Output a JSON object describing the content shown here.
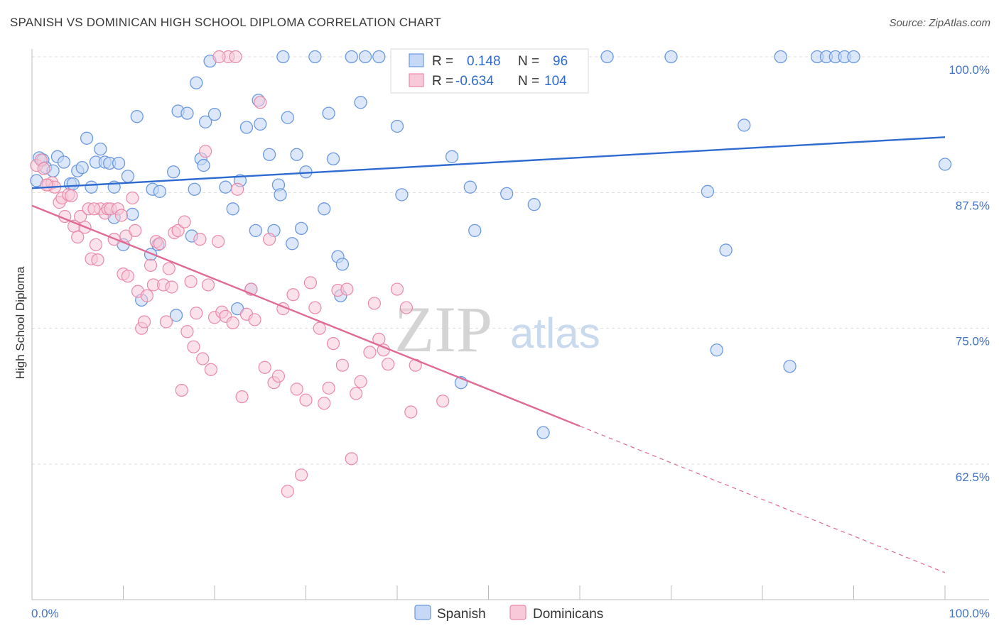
{
  "header": {
    "title": "SPANISH VS DOMINICAN HIGH SCHOOL DIPLOMA CORRELATION CHART",
    "source": "Source: ZipAtlas.com"
  },
  "watermark": {
    "zip": "ZIP",
    "atlas": "atlas"
  },
  "legend": {
    "spanish": {
      "r_label": "R =",
      "r_value": "0.148",
      "n_label": "N =",
      "n_value": "96"
    },
    "dominicans": {
      "r_label": "R =",
      "r_value": "-0.634",
      "n_label": "N =",
      "n_value": "104"
    }
  },
  "chart_data": {
    "type": "scatter",
    "title": "SPANISH VS DOMINICAN HIGH SCHOOL DIPLOMA CORRELATION CHART",
    "ylabel": "High School Diploma",
    "xlabel": "",
    "xlim": [
      0,
      100
    ],
    "ylim": [
      53,
      101.5
    ],
    "x_tick_labels": [
      "0.0%",
      "100.0%"
    ],
    "y_ticks": [
      100.0,
      87.5,
      75.0,
      62.5
    ],
    "y_tick_labels": [
      "100.0%",
      "87.5%",
      "75.0%",
      "62.5%"
    ],
    "grid": true,
    "legend_position": "top-center",
    "colors": {
      "spanish": "#6c9ae0",
      "spanish_fill": "#c5d8f5",
      "dominicans": "#e98aa8",
      "dominicans_fill": "#f8c9d8",
      "spanish_line": "#2e6bd0",
      "dominicans_line": "#e06a93"
    },
    "series": [
      {
        "name": "Spanish",
        "trend": {
          "x": [
            0,
            100
          ],
          "y": [
            87.9,
            92.6
          ]
        },
        "points": [
          [
            0.5,
            88.6
          ],
          [
            0.8,
            90.7
          ],
          [
            1.2,
            90.5
          ],
          [
            1.5,
            89.8
          ],
          [
            2.3,
            89.5
          ],
          [
            2.8,
            90.8
          ],
          [
            3.5,
            90.3
          ],
          [
            4.2,
            88.3
          ],
          [
            4.5,
            88.3
          ],
          [
            5,
            89.5
          ],
          [
            5.5,
            89.8
          ],
          [
            6,
            92.5
          ],
          [
            6.5,
            88.0
          ],
          [
            7,
            90.3
          ],
          [
            7.5,
            91.5
          ],
          [
            8,
            90.3
          ],
          [
            8.5,
            90.2
          ],
          [
            9,
            88.0
          ],
          [
            9.5,
            90.2
          ],
          [
            9,
            85.2
          ],
          [
            10,
            82.7
          ],
          [
            10.5,
            89.0
          ],
          [
            11,
            85.5
          ],
          [
            11.5,
            94.5
          ],
          [
            12,
            77.6
          ],
          [
            13,
            81.8
          ],
          [
            13.2,
            87.8
          ],
          [
            13.8,
            82.7
          ],
          [
            14,
            87.6
          ],
          [
            15.5,
            89.4
          ],
          [
            15.8,
            76.2
          ],
          [
            16,
            95.0
          ],
          [
            17,
            94.8
          ],
          [
            17.5,
            83.5
          ],
          [
            17.8,
            87.8
          ],
          [
            18,
            97.6
          ],
          [
            18.5,
            90.6
          ],
          [
            18.8,
            90.0
          ],
          [
            19,
            94.0
          ],
          [
            19.5,
            99.6
          ],
          [
            20,
            94.7
          ],
          [
            21.2,
            88.0
          ],
          [
            22,
            86.0
          ],
          [
            22.5,
            76.8
          ],
          [
            22.8,
            88.6
          ],
          [
            23.5,
            93.5
          ],
          [
            24,
            78.6
          ],
          [
            24.5,
            84.0
          ],
          [
            24.8,
            96.0
          ],
          [
            25,
            93.8
          ],
          [
            26,
            91.0
          ],
          [
            26.5,
            84.0
          ],
          [
            27,
            88.2
          ],
          [
            27.2,
            87.3
          ],
          [
            27.5,
            100
          ],
          [
            28,
            94.4
          ],
          [
            28.5,
            82.8
          ],
          [
            29,
            91.0
          ],
          [
            29.5,
            84.2
          ],
          [
            30,
            89.4
          ],
          [
            31,
            100
          ],
          [
            32,
            86.0
          ],
          [
            32.5,
            94.8
          ],
          [
            33,
            90.6
          ],
          [
            33.5,
            81.6
          ],
          [
            33.8,
            78.0
          ],
          [
            34,
            80.9
          ],
          [
            35,
            100
          ],
          [
            36,
            95.8
          ],
          [
            36.5,
            100
          ],
          [
            38,
            100
          ],
          [
            40,
            93.6
          ],
          [
            40.5,
            87.3
          ],
          [
            43,
            100
          ],
          [
            46,
            90.8
          ],
          [
            47,
            70.0
          ],
          [
            48,
            88.0
          ],
          [
            48.5,
            84.0
          ],
          [
            52,
            87.4
          ],
          [
            55,
            86.4
          ],
          [
            56,
            65.4
          ],
          [
            56.5,
            100
          ],
          [
            63,
            100
          ],
          [
            70,
            100
          ],
          [
            74,
            87.6
          ],
          [
            75,
            73.0
          ],
          [
            76,
            82.2
          ],
          [
            78,
            93.7
          ],
          [
            82,
            100
          ],
          [
            83,
            71.5
          ],
          [
            86,
            100
          ],
          [
            87,
            100
          ],
          [
            88,
            100
          ],
          [
            89,
            100
          ],
          [
            90,
            100
          ],
          [
            100,
            90.1
          ]
        ]
      },
      {
        "name": "Dominicans",
        "trend": {
          "x": [
            0,
            60
          ],
          "y": [
            86.3,
            66.0
          ]
        },
        "trend_dashed": {
          "x": [
            60,
            100
          ],
          "y": [
            66.0,
            52.5
          ]
        },
        "points": [
          [
            0.5,
            90.0
          ],
          [
            1,
            90.5
          ],
          [
            1.3,
            89.7
          ],
          [
            1.8,
            88.2
          ],
          [
            2.2,
            88.4
          ],
          [
            2.5,
            88.0
          ],
          [
            3,
            86.6
          ],
          [
            3.3,
            87.0
          ],
          [
            3.6,
            85.3
          ],
          [
            4,
            87.3
          ],
          [
            4.3,
            87.2
          ],
          [
            4.6,
            84.4
          ],
          [
            5,
            83.4
          ],
          [
            5.3,
            85.3
          ],
          [
            5.8,
            84.3
          ],
          [
            6.2,
            86.0
          ],
          [
            6.5,
            81.4
          ],
          [
            7,
            82.7
          ],
          [
            7.2,
            81.3
          ],
          [
            7.5,
            86.0
          ],
          [
            8,
            85.6
          ],
          [
            8.3,
            86.0
          ],
          [
            8.6,
            86.0
          ],
          [
            9,
            83.2
          ],
          [
            9.4,
            86.0
          ],
          [
            9.8,
            85.4
          ],
          [
            10,
            80.0
          ],
          [
            10.3,
            83.5
          ],
          [
            10.5,
            79.8
          ],
          [
            11,
            87.0
          ],
          [
            11.3,
            84.0
          ],
          [
            11.6,
            78.4
          ],
          [
            12,
            75.0
          ],
          [
            12.3,
            75.6
          ],
          [
            12.6,
            78.0
          ],
          [
            13,
            80.8
          ],
          [
            13.3,
            79.0
          ],
          [
            13.6,
            83.0
          ],
          [
            14,
            82.8
          ],
          [
            14.4,
            79.0
          ],
          [
            14.7,
            75.6
          ],
          [
            15,
            80.5
          ],
          [
            15.3,
            78.8
          ],
          [
            15.6,
            83.8
          ],
          [
            16,
            84.0
          ],
          [
            16.4,
            69.3
          ],
          [
            16.7,
            84.8
          ],
          [
            17,
            74.7
          ],
          [
            17.4,
            79.3
          ],
          [
            17.7,
            73.3
          ],
          [
            18,
            76.4
          ],
          [
            18.4,
            83.2
          ],
          [
            18.7,
            72.2
          ],
          [
            19,
            91.3
          ],
          [
            19.3,
            79.0
          ],
          [
            19.6,
            71.2
          ],
          [
            20,
            76.0
          ],
          [
            20.4,
            83.0
          ],
          [
            20.8,
            76.5
          ],
          [
            21.2,
            76.1
          ],
          [
            21.5,
            100
          ],
          [
            22,
            75.5
          ],
          [
            22.5,
            87.8
          ],
          [
            23,
            68.7
          ],
          [
            23.5,
            76.3
          ],
          [
            24,
            78.6
          ],
          [
            24.4,
            75.8
          ],
          [
            25,
            95.8
          ],
          [
            25.5,
            71.4
          ],
          [
            26,
            83.2
          ],
          [
            26.5,
            70.0
          ],
          [
            27,
            70.6
          ],
          [
            27.5,
            76.8
          ],
          [
            28,
            60.0
          ],
          [
            28.6,
            78.1
          ],
          [
            29,
            69.4
          ],
          [
            29.5,
            61.5
          ],
          [
            30,
            68.4
          ],
          [
            30.5,
            79.2
          ],
          [
            31,
            76.9
          ],
          [
            31.5,
            75.0
          ],
          [
            32,
            68.1
          ],
          [
            32.5,
            69.5
          ],
          [
            33,
            73.6
          ],
          [
            33.5,
            78.5
          ],
          [
            34,
            71.6
          ],
          [
            34.5,
            78.6
          ],
          [
            35,
            63.0
          ],
          [
            35.5,
            69.0
          ],
          [
            36,
            70.1
          ],
          [
            37,
            72.8
          ],
          [
            37.5,
            77.3
          ],
          [
            38,
            74.0
          ],
          [
            38.5,
            73.0
          ],
          [
            39,
            71.7
          ],
          [
            40,
            78.6
          ],
          [
            41,
            76.9
          ],
          [
            41.5,
            67.3
          ],
          [
            42,
            71.6
          ],
          [
            45,
            68.3
          ],
          [
            20.5,
            100
          ],
          [
            22.3,
            100
          ],
          [
            1.6,
            88.2
          ],
          [
            6.8,
            86.0
          ]
        ]
      }
    ]
  }
}
